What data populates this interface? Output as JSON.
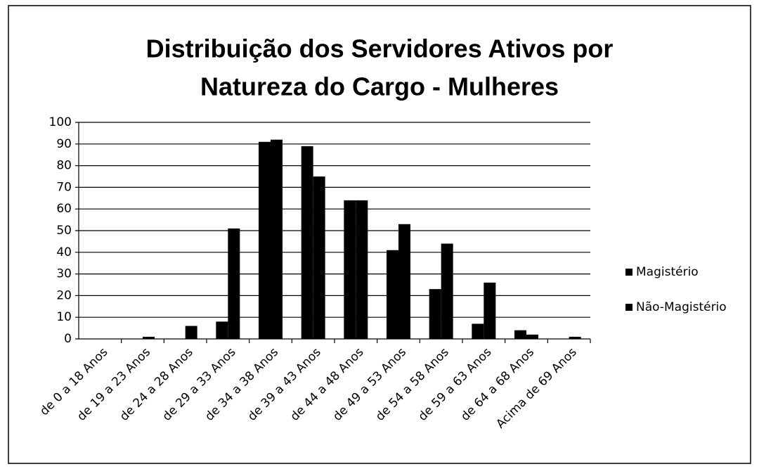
{
  "chart_data": {
    "type": "bar",
    "title": [
      "Distribuição dos Servidores Ativos por",
      "Natureza do Cargo - Mulheres"
    ],
    "categories": [
      "de 0 a 18 Anos",
      "de 19 a 23 Anos",
      "de 24 a 28 Anos",
      "de 29 a 33 Anos",
      "de 34 a 38 Anos",
      "de 39 a 43 Anos",
      "de 44 a 48 Anos",
      "de 49 a 53 Anos",
      "de 54 a 58 Anos",
      "de 59 a 63 Anos",
      "de 64 a 68 Anos",
      "Acima de 69 Anos"
    ],
    "series": [
      {
        "name": "Magistério",
        "color": "#000000",
        "values": [
          0,
          0,
          0,
          8,
          91,
          89,
          64,
          41,
          23,
          7,
          4,
          0
        ]
      },
      {
        "name": "Não-Magistério",
        "color": "#000000",
        "values": [
          0,
          1,
          6,
          51,
          92,
          75,
          64,
          53,
          44,
          26,
          2,
          1
        ]
      }
    ],
    "ylim": [
      0,
      100
    ],
    "yticks": [
      0,
      10,
      20,
      30,
      40,
      50,
      60,
      70,
      80,
      90,
      100
    ],
    "grid": true,
    "legend": "right"
  }
}
